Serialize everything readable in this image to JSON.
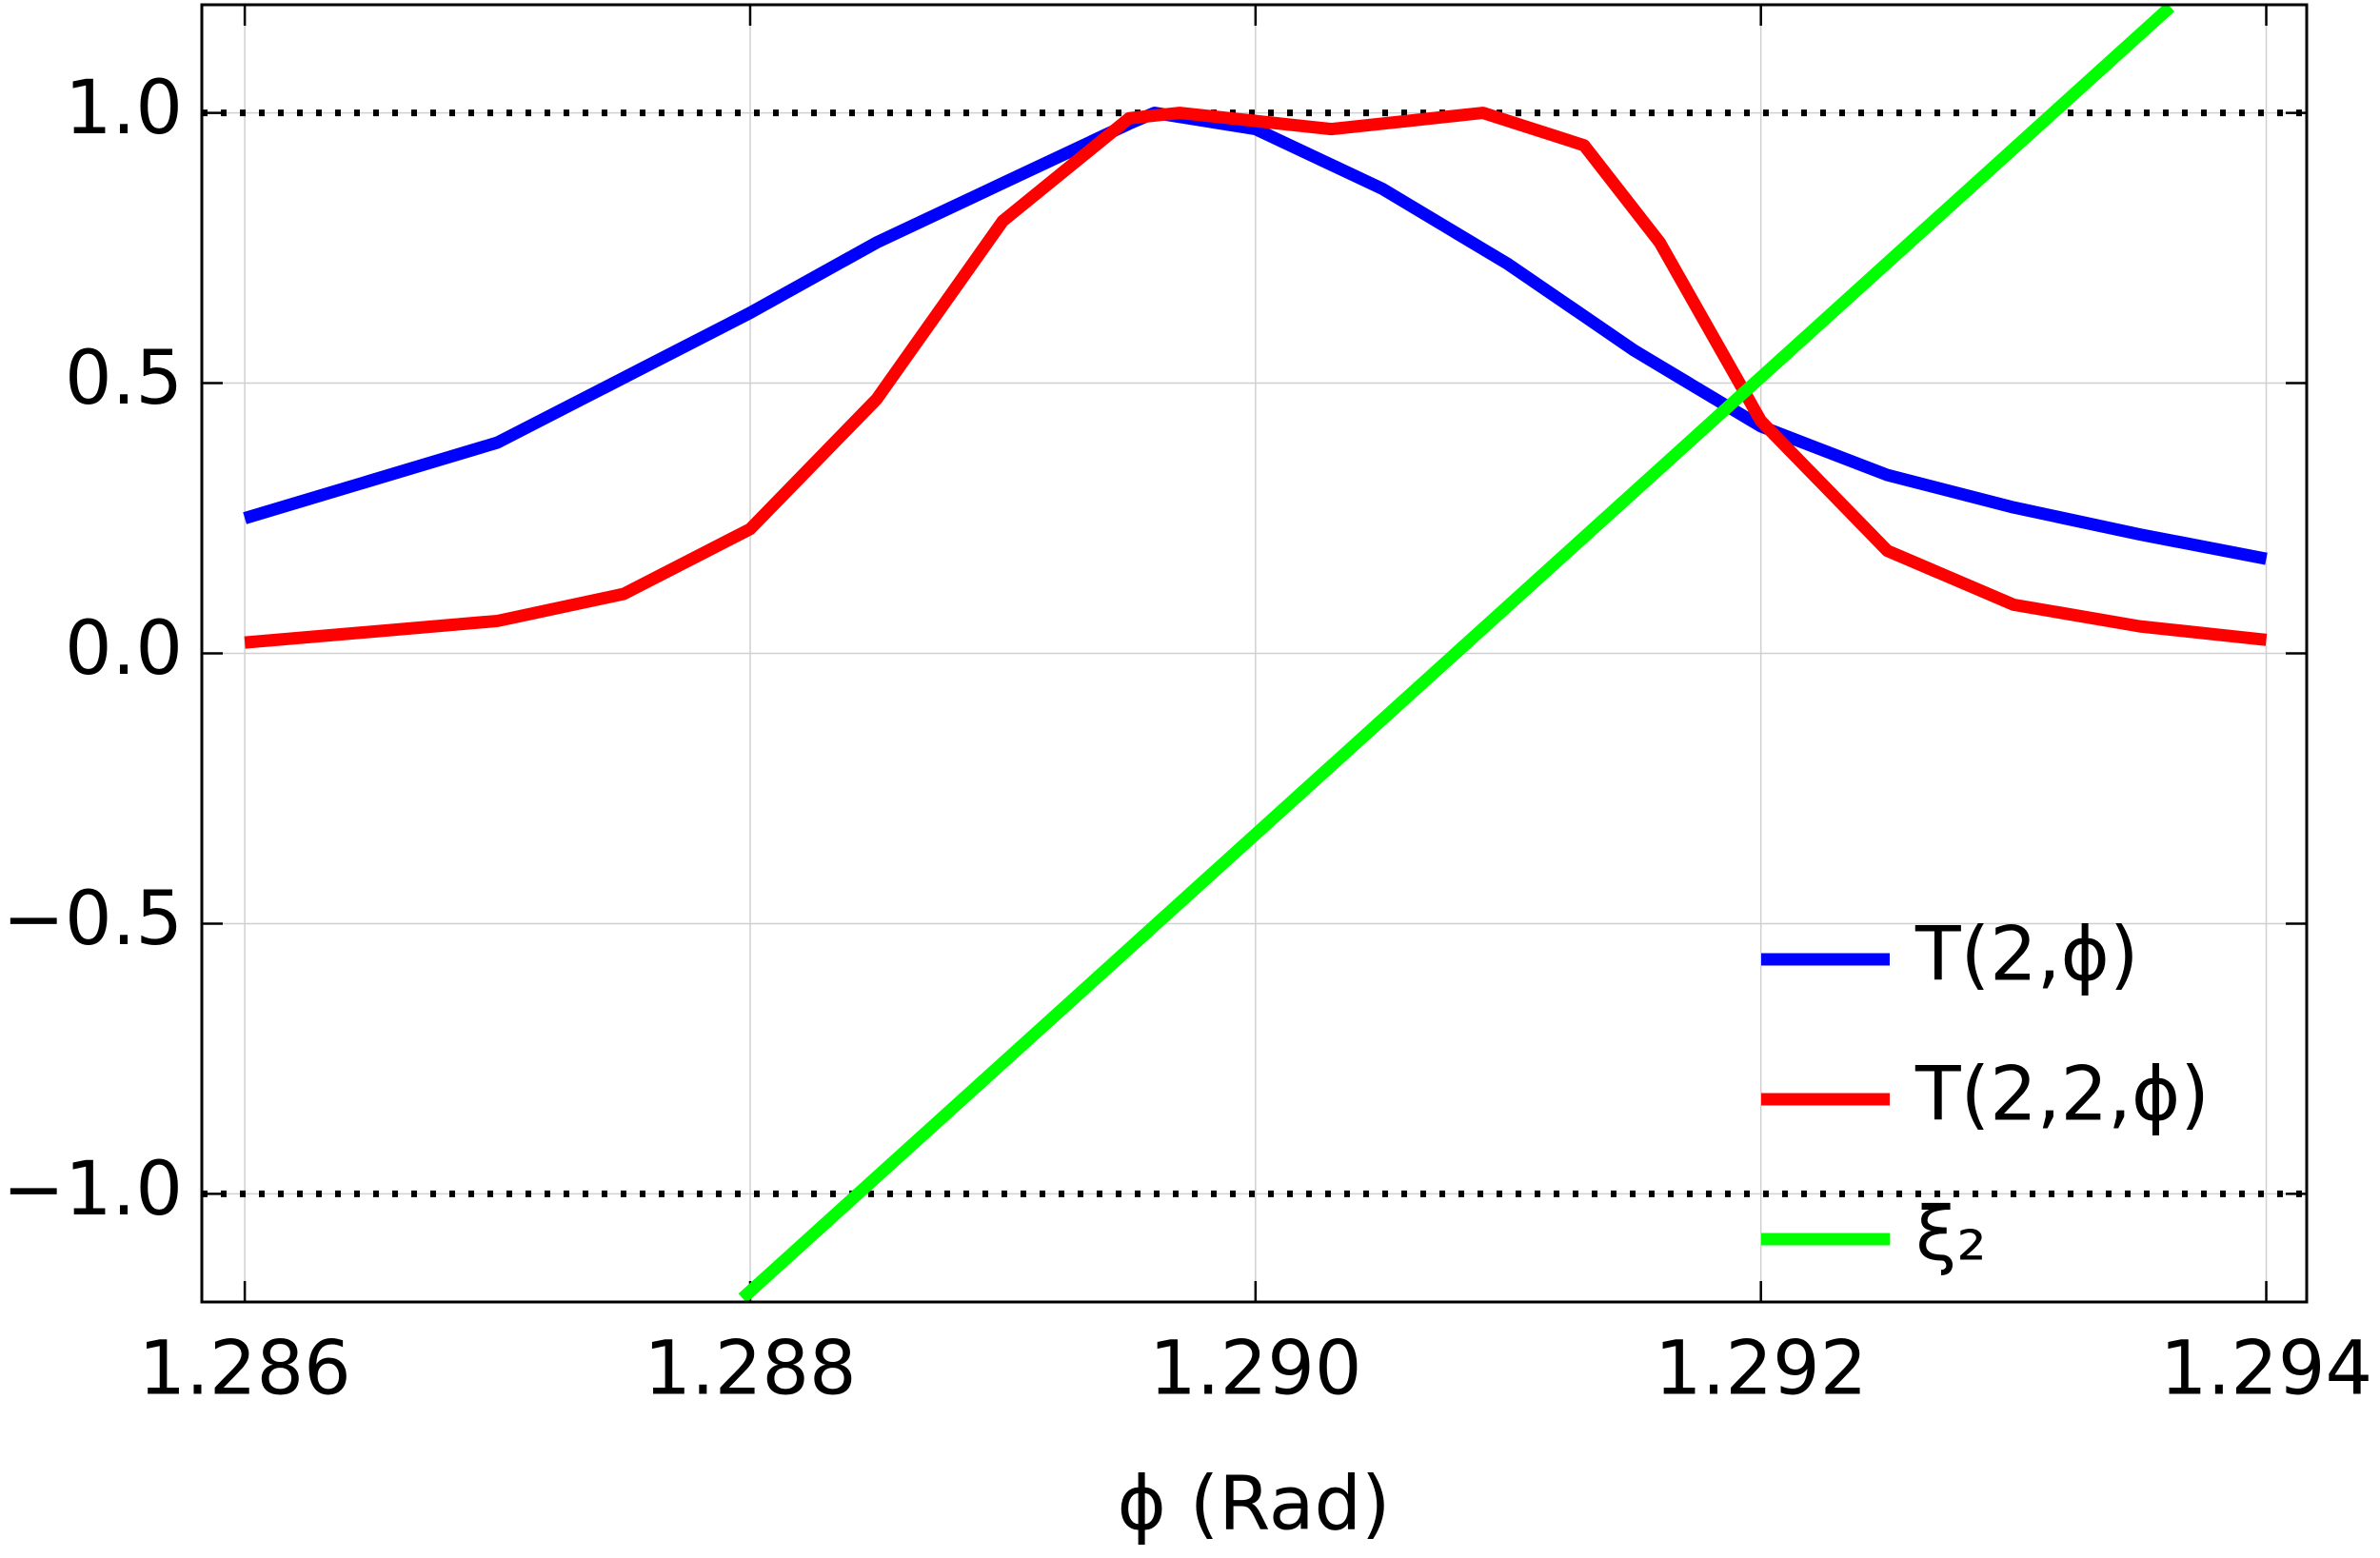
{
  "chart_data": {
    "type": "line",
    "xlabel": "ϕ (Rad)",
    "xlim": [
      1.28583,
      1.29416
    ],
    "ylim": [
      -1.2,
      1.2
    ],
    "xticks": [
      1.286,
      1.288,
      {
        "value": 1.29,
        "label": "1.290"
      },
      1.292,
      1.294
    ],
    "yticks": [
      {
        "value": -1,
        "label": "−1.0"
      },
      {
        "value": -0.5,
        "label": "−0.5"
      },
      {
        "value": 0,
        "label": "0.0"
      },
      {
        "value": 0.5,
        "label": "0.5"
      },
      {
        "value": 1,
        "label": "1.0"
      }
    ],
    "grid": true,
    "hlines": [
      1,
      -1
    ],
    "legend": "lower right",
    "series": [
      {
        "name": "T(2,ϕ)",
        "color": "#0000ff",
        "x": [
          1.286,
          1.2865,
          1.287,
          1.2875,
          1.288,
          1.2885,
          1.289,
          1.2895,
          1.2896,
          1.29,
          1.2905,
          1.291,
          1.2915,
          1.292,
          1.2925,
          1.293,
          1.2935,
          1.294
        ],
        "values": [
          0.25,
          0.32,
          0.39,
          0.51,
          0.63,
          0.76,
          0.87,
          0.98,
          1.0,
          0.97,
          0.86,
          0.72,
          0.56,
          0.42,
          0.33,
          0.27,
          0.22,
          0.175
        ]
      },
      {
        "name": "T(2,2,ϕ)",
        "color": "#ff0000",
        "x": [
          1.286,
          1.287,
          1.2875,
          1.288,
          1.2885,
          1.289,
          1.2895,
          1.2897,
          1.29,
          1.2903,
          1.2906,
          1.2909,
          1.2913,
          1.2916,
          1.292,
          1.2925,
          1.293,
          1.2935,
          1.294
        ],
        "values": [
          0.02,
          0.06,
          0.11,
          0.23,
          0.47,
          0.8,
          0.99,
          1.0,
          0.985,
          0.97,
          0.985,
          1.0,
          0.94,
          0.76,
          0.43,
          0.19,
          0.09,
          0.05,
          0.025
        ]
      },
      {
        "name": "ξ₂",
        "color": "#00ff00",
        "x": [
          1.28797,
          1.29362
        ],
        "values": [
          -1.193,
          1.196
        ]
      }
    ]
  }
}
